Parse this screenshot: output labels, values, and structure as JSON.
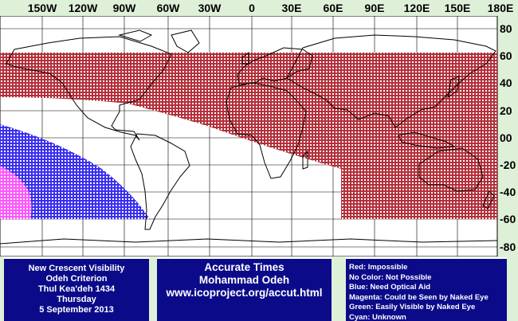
{
  "map": {
    "longitude_labels": [
      "150W",
      "120W",
      "90W",
      "60W",
      "30W",
      "0",
      "30E",
      "60E",
      "90E",
      "120E",
      "150E",
      "180E"
    ],
    "latitude_labels": [
      "80",
      "60",
      "40",
      "20",
      "00",
      "-20",
      "-40",
      "-60",
      "-80"
    ],
    "zones": [
      {
        "name": "impossible",
        "color": "#b3303a",
        "extent": "north of about 60S in the eastern hemisphere and north of about 10-20N in the western hemisphere, south limit about 60N"
      },
      {
        "name": "optical-aid",
        "color": "#3a2ff0"
      },
      {
        "name": "naked-eye-maybe",
        "color": "#ff55ff"
      }
    ]
  },
  "info": {
    "lines": [
      "New Crescent Visibility",
      "Odeh Criterion",
      "Thul Kea'deh 1434",
      "Thursday",
      "5 September 2013"
    ]
  },
  "credits": {
    "lines": [
      "Accurate Times",
      "Mohammad Odeh",
      "www.icoproject.org/accut.html"
    ]
  },
  "legend": {
    "lines": [
      "Red: Impossible",
      "No Color: Not Possible",
      "Blue: Need Optical Aid",
      "Magenta: Could be Seen by Naked Eye",
      "Green: Easily Visible by Naked Eye",
      "Cyan: Unknown"
    ]
  },
  "colors": {
    "background": "#dff0d8",
    "panel": "#0b0b8a",
    "coast": "#000000"
  }
}
